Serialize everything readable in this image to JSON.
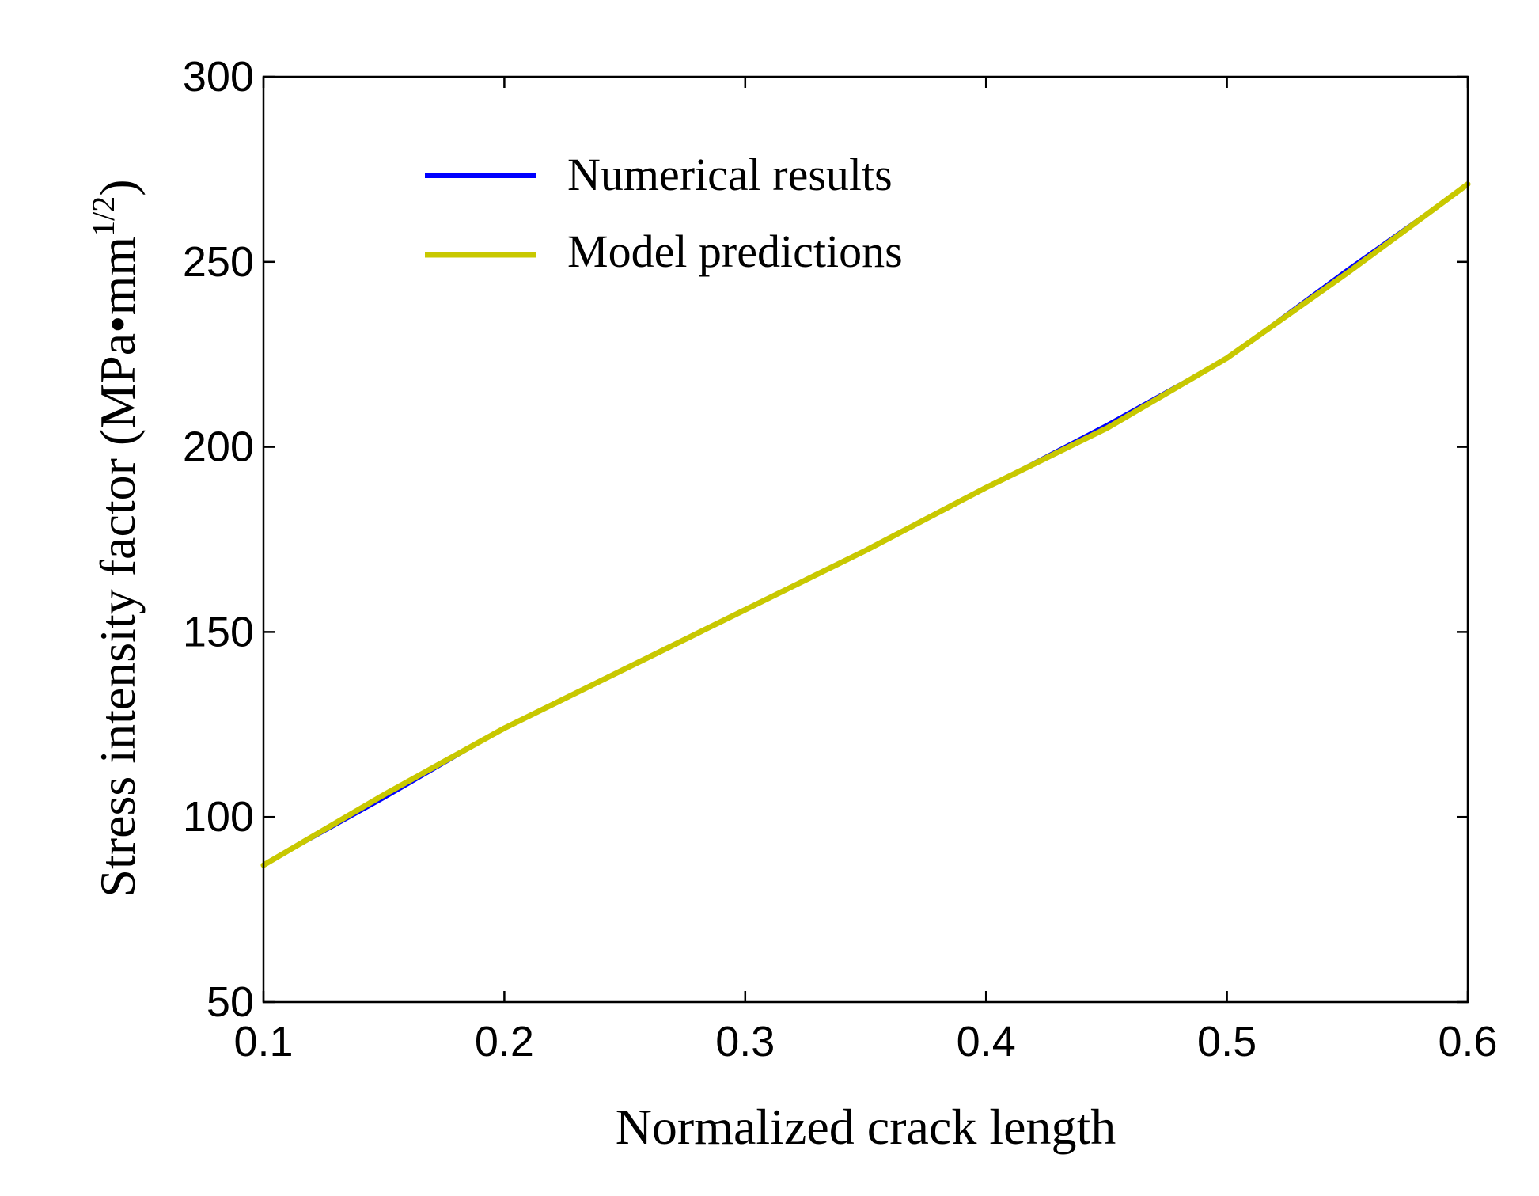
{
  "chart_data": {
    "type": "line",
    "title": "",
    "xlabel": "Normalized crack length",
    "ylabel": "Stress intensity factor (MPa•mm",
    "ylabel_sup": "1/2",
    "ylabel_close": ")",
    "xlim": [
      0.1,
      0.6
    ],
    "ylim": [
      50,
      300
    ],
    "xticks": [
      0.1,
      0.2,
      0.3,
      0.4,
      0.5,
      0.6
    ],
    "xtick_labels": [
      "0.1",
      "0.2",
      "0.3",
      "0.4",
      "0.5",
      "0.6"
    ],
    "yticks": [
      50,
      100,
      150,
      200,
      250,
      300
    ],
    "ytick_labels": [
      "50",
      "100",
      "150",
      "200",
      "250",
      "300"
    ],
    "grid": false,
    "legend_position": "top-left",
    "x": [
      0.1,
      0.15,
      0.2,
      0.25,
      0.3,
      0.35,
      0.4,
      0.45,
      0.5,
      0.55,
      0.6
    ],
    "series": [
      {
        "name": "Numerical results",
        "color": "#0000ff",
        "values": [
          87,
          105,
          124,
          140,
          156,
          172,
          189,
          206,
          224,
          248,
          271
        ]
      },
      {
        "name": "Model predictions",
        "color": "#c8c800",
        "values": [
          87,
          106,
          124,
          140,
          156,
          172,
          189,
          205,
          224,
          247,
          271
        ]
      }
    ]
  }
}
